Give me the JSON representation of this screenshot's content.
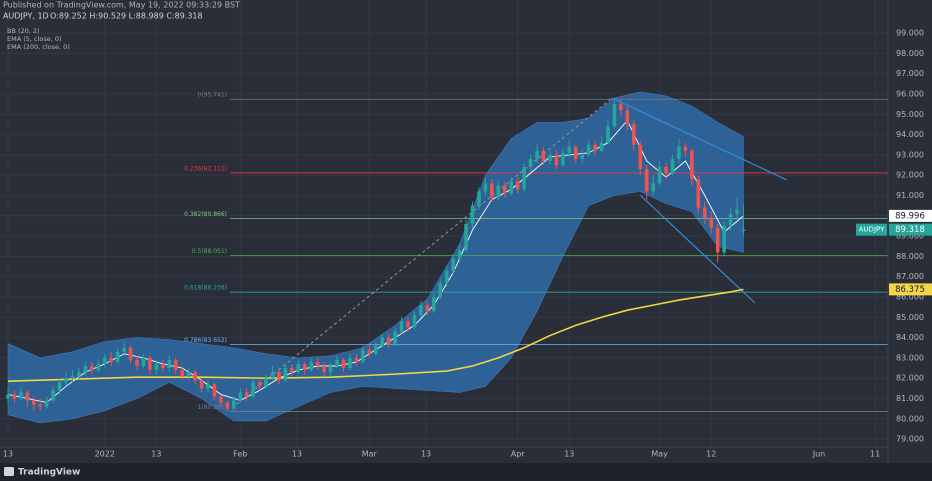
{
  "chart_data": {
    "type": "candlestick",
    "publisher": "Published on TradingView.com, May 19, 2022 09:33:29 BST",
    "title": "AUDJPY, 1D",
    "ohlc_text": "O:89.252 H:90.529 L:88.989 C:89.318",
    "symbol": "AUDJPY",
    "up_color": "#26a69a",
    "down_color": "#ef5350",
    "candles": {
      "open": [
        81.0,
        81.2,
        81.0,
        81.3,
        80.9,
        80.7,
        80.6,
        80.9,
        81.4,
        81.8,
        82.0,
        82.1,
        82.3,
        82.6,
        82.4,
        82.7,
        83.0,
        82.8,
        83.3,
        83.5,
        82.9,
        82.6,
        83.0,
        82.4,
        82.7,
        82.5,
        82.9,
        82.4,
        82.1,
        82.3,
        81.9,
        81.5,
        81.7,
        81.1,
        80.8,
        80.5,
        80.9,
        81.3,
        81.1,
        81.8,
        81.6,
        82.0,
        82.3,
        81.9,
        82.5,
        82.3,
        82.7,
        82.4,
        82.8,
        82.6,
        82.3,
        82.6,
        82.9,
        82.5,
        83.0,
        82.8,
        83.4,
        83.2,
        83.6,
        84.0,
        83.7,
        84.3,
        84.8,
        84.5,
        85.1,
        85.6,
        85.3,
        86.0,
        86.7,
        87.3,
        87.9,
        88.3,
        89.6,
        90.5,
        91.2,
        91.6,
        90.9,
        91.5,
        91.1,
        91.7,
        91.3,
        92.4,
        92.8,
        93.2,
        92.7,
        93.0,
        92.5,
        93.1,
        93.4,
        92.8,
        93.0,
        93.5,
        93.2,
        93.6,
        94.4,
        95.5,
        95.2,
        94.5,
        93.5,
        92.3,
        91.2,
        91.6,
        92.4,
        92.1,
        92.8,
        93.4,
        93.2,
        91.8,
        90.4,
        89.9,
        89.4,
        88.2,
        89.5,
        90.1,
        89.252
      ],
      "high": [
        81.5,
        81.4,
        81.6,
        81.4,
        81.1,
        81.0,
        81.1,
        81.6,
        82.0,
        82.3,
        82.4,
        82.5,
        82.8,
        82.8,
        82.9,
        83.2,
        83.3,
        83.5,
        83.8,
        83.6,
        83.1,
        83.2,
        83.1,
        82.9,
        82.9,
        83.1,
        83.0,
        82.6,
        82.5,
        82.4,
        82.0,
        81.9,
        81.8,
        81.2,
        80.9,
        81.1,
        81.5,
        81.5,
        82.0,
        82.0,
        82.2,
        82.6,
        82.4,
        82.7,
        82.7,
        82.9,
        82.8,
        83.0,
        83.0,
        82.8,
        82.8,
        83.1,
        83.0,
        83.2,
        83.2,
        83.6,
        83.6,
        83.8,
        84.2,
        84.2,
        84.5,
        85.0,
        85.0,
        85.3,
        85.8,
        85.8,
        86.2,
        86.9,
        87.5,
        88.1,
        88.6,
        89.8,
        90.7,
        91.4,
        91.9,
        91.8,
        91.7,
        91.7,
        91.9,
        91.9,
        92.6,
        93.0,
        93.5,
        93.4,
        93.2,
        93.2,
        93.3,
        93.7,
        93.5,
        93.3,
        93.7,
        93.7,
        93.9,
        94.7,
        95.741,
        95.7,
        95.4,
        94.7,
        93.7,
        92.5,
        92.0,
        92.7,
        92.6,
        93.0,
        93.8,
        93.6,
        93.3,
        92.0,
        90.7,
        90.2,
        89.6,
        89.7,
        90.4,
        90.9,
        90.529
      ],
      "low": [
        80.8,
        80.8,
        80.9,
        80.6,
        80.4,
        80.4,
        80.5,
        80.8,
        81.2,
        81.6,
        81.8,
        81.9,
        82.1,
        82.2,
        82.3,
        82.5,
        82.6,
        82.7,
        83.1,
        82.7,
        82.4,
        82.5,
        82.2,
        82.2,
        82.3,
        82.3,
        82.2,
        81.9,
        81.9,
        81.7,
        81.3,
        81.3,
        80.9,
        80.6,
        80.361,
        80.4,
        80.8,
        80.9,
        81.0,
        81.4,
        81.5,
        81.9,
        81.7,
        81.8,
        82.1,
        82.2,
        82.2,
        82.3,
        82.4,
        82.1,
        82.1,
        82.5,
        82.3,
        82.4,
        82.6,
        82.7,
        83.0,
        83.1,
        83.5,
        83.5,
        83.6,
        84.2,
        84.3,
        84.4,
        85.0,
        85.1,
        85.2,
        85.9,
        86.5,
        87.1,
        87.7,
        88.2,
        89.4,
        90.3,
        91.0,
        90.7,
        90.8,
        90.9,
        91.0,
        91.1,
        91.2,
        92.2,
        92.6,
        92.5,
        92.5,
        92.3,
        92.4,
        92.9,
        92.6,
        92.6,
        92.9,
        93.0,
        93.1,
        93.5,
        94.3,
        94.9,
        94.2,
        93.2,
        92.0,
        90.8,
        91.0,
        91.5,
        91.8,
        92.0,
        92.6,
        92.9,
        91.5,
        90.1,
        89.6,
        89.1,
        87.7,
        88.0,
        89.3,
        89.9,
        88.989
      ],
      "close": [
        81.2,
        81.0,
        81.3,
        80.9,
        80.7,
        80.6,
        80.9,
        81.4,
        81.8,
        82.0,
        82.1,
        82.3,
        82.6,
        82.4,
        82.7,
        83.0,
        82.8,
        83.3,
        83.5,
        82.9,
        82.6,
        83.0,
        82.4,
        82.7,
        82.5,
        82.9,
        82.4,
        82.1,
        82.3,
        81.9,
        81.5,
        81.7,
        81.1,
        80.8,
        80.5,
        80.9,
        81.3,
        81.1,
        81.8,
        81.6,
        82.0,
        82.3,
        81.9,
        82.5,
        82.3,
        82.7,
        82.4,
        82.8,
        82.6,
        82.3,
        82.6,
        82.9,
        82.5,
        83.0,
        82.8,
        83.4,
        83.2,
        83.6,
        84.0,
        83.7,
        84.3,
        84.8,
        84.5,
        85.1,
        85.6,
        85.3,
        86.0,
        86.7,
        87.3,
        87.9,
        88.3,
        89.6,
        90.5,
        91.2,
        91.6,
        90.9,
        91.5,
        91.1,
        91.7,
        91.3,
        92.4,
        92.8,
        93.2,
        92.7,
        93.0,
        92.5,
        93.1,
        93.4,
        92.8,
        93.0,
        93.5,
        93.2,
        93.6,
        94.4,
        95.5,
        95.2,
        94.5,
        93.5,
        92.3,
        91.2,
        91.6,
        92.4,
        92.1,
        92.8,
        93.4,
        93.2,
        91.8,
        90.4,
        89.9,
        89.4,
        88.2,
        89.5,
        90.1,
        90.3,
        89.318
      ]
    },
    "indicators": [
      {
        "name": "BB (20, 2)",
        "color": "#2f6aa6",
        "x": [
          0,
          5,
          10,
          15,
          20,
          25,
          30,
          35,
          40,
          45,
          50,
          55,
          60,
          65,
          70,
          74,
          78,
          82,
          86,
          90,
          94,
          98,
          102,
          106,
          110,
          114
        ],
        "upper": [
          83.7,
          83.0,
          83.3,
          83.8,
          84.0,
          83.9,
          83.7,
          83.5,
          83.2,
          83.0,
          83.1,
          83.5,
          84.6,
          85.9,
          88.6,
          92.0,
          93.8,
          94.6,
          94.6,
          94.8,
          95.8,
          96.1,
          95.9,
          95.4,
          94.6,
          93.9
        ],
        "lower": [
          80.2,
          79.8,
          80.0,
          80.4,
          81.0,
          81.8,
          81.0,
          79.9,
          79.9,
          80.6,
          81.3,
          81.6,
          81.5,
          81.4,
          81.3,
          81.6,
          83.0,
          85.3,
          88.0,
          90.5,
          91.0,
          91.2,
          90.6,
          90.2,
          88.5,
          88.2
        ]
      },
      {
        "name": "EMA (5, close, 0)",
        "color": "#ffffff",
        "x": [
          0,
          3,
          6,
          9,
          12,
          15,
          18,
          21,
          24,
          27,
          30,
          33,
          36,
          39,
          42,
          45,
          48,
          51,
          54,
          57,
          60,
          63,
          66,
          69,
          72,
          75,
          78,
          81,
          84,
          87,
          90,
          93,
          96,
          99,
          102,
          105,
          108,
          111,
          114
        ],
        "values": [
          81.2,
          81.0,
          80.8,
          81.6,
          82.3,
          82.7,
          83.2,
          83.0,
          82.7,
          82.5,
          81.9,
          81.2,
          80.9,
          81.4,
          82.0,
          82.4,
          82.6,
          82.6,
          82.8,
          83.4,
          84.0,
          84.6,
          85.6,
          87.2,
          89.3,
          90.8,
          91.3,
          92.1,
          92.9,
          93.0,
          93.1,
          93.6,
          94.7,
          92.7,
          91.9,
          92.7,
          91.0,
          89.2,
          89.996
        ]
      },
      {
        "name": "EMA (200, close, 0)",
        "color": "#f2d647",
        "x": [
          0,
          10,
          20,
          30,
          40,
          50,
          60,
          68,
          72,
          76,
          80,
          84,
          88,
          92,
          96,
          100,
          104,
          108,
          112,
          114
        ],
        "values": [
          81.85,
          81.95,
          82.05,
          82.05,
          82.0,
          82.05,
          82.2,
          82.35,
          82.6,
          83.0,
          83.5,
          84.1,
          84.6,
          85.0,
          85.35,
          85.6,
          85.85,
          86.05,
          86.25,
          86.375
        ]
      }
    ],
    "fib_levels": [
      {
        "label": "0(95.741)",
        "price": 95.741,
        "color": "#787b86"
      },
      {
        "label": "0.236(92.111)",
        "price": 92.111,
        "color": "#f23645"
      },
      {
        "label": "0.382(89.866)",
        "price": 89.866,
        "color": "#81c784"
      },
      {
        "label": "0.5(88.051)",
        "price": 88.051,
        "color": "#4caf50"
      },
      {
        "label": "0.618(86.236)",
        "price": 86.236,
        "color": "#26a69a"
      },
      {
        "label": "0.786(83.652)",
        "price": 83.652,
        "color": "#64b5f6"
      },
      {
        "label": "1(80.361)",
        "price": 80.361,
        "color": "#787b86"
      }
    ],
    "xlim": [
      -1.24,
      136.4
    ],
    "xticks": [
      {
        "value": 0,
        "label": "13"
      },
      {
        "value": 15,
        "label": "2022"
      },
      {
        "value": 23,
        "label": "13"
      },
      {
        "value": 36,
        "label": "Feb"
      },
      {
        "value": 44.8,
        "label": "13"
      },
      {
        "value": 56,
        "label": "Mar"
      },
      {
        "value": 64.8,
        "label": "13"
      },
      {
        "value": 79,
        "label": "Apr"
      },
      {
        "value": 87,
        "label": "13"
      },
      {
        "value": 101,
        "label": "May"
      },
      {
        "value": 109,
        "label": "12"
      },
      {
        "value": 125.7,
        "label": "Jun"
      },
      {
        "value": 134.4,
        "label": "11"
      }
    ],
    "ylim": [
      78.61,
      100.63
    ],
    "yticks": [
      {
        "value": 79,
        "label": "79.000"
      },
      {
        "value": 80,
        "label": "80.000"
      },
      {
        "value": 81,
        "label": "81.000"
      },
      {
        "value": 82,
        "label": "82.000"
      },
      {
        "value": 83,
        "label": "83.000"
      },
      {
        "value": 84,
        "label": "84.000"
      },
      {
        "value": 85,
        "label": "85.000"
      },
      {
        "value": 86,
        "label": "86.000"
      },
      {
        "value": 87,
        "label": "87.000"
      },
      {
        "value": 88,
        "label": "88.000"
      },
      {
        "value": 89,
        "label": "89.000"
      },
      {
        "value": 90,
        "label": "90.000"
      },
      {
        "value": 91,
        "label": "91.000"
      },
      {
        "value": 92,
        "label": "92.000"
      },
      {
        "value": 93,
        "label": "93.000"
      },
      {
        "value": 94,
        "label": "94.000"
      },
      {
        "value": 95,
        "label": "95.000"
      },
      {
        "value": 96,
        "label": "96.000"
      },
      {
        "value": 97,
        "label": "97.000"
      },
      {
        "value": 98,
        "label": "98.000"
      },
      {
        "value": 99,
        "label": "99.000"
      }
    ],
    "grid": true
  },
  "footer": {
    "brand": "TradingView"
  }
}
